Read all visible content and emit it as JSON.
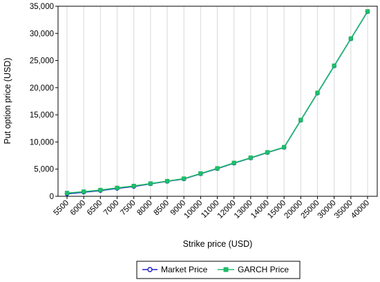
{
  "chart_data": {
    "type": "line",
    "title": "",
    "xlabel": "Strike price (USD)",
    "ylabel": "Put option price (USD)",
    "categories": [
      "5500",
      "6000",
      "6500",
      "7000",
      "7500",
      "8000",
      "8500",
      "9000",
      "10000",
      "11000",
      "12000",
      "13000",
      "14000",
      "15000",
      "20000",
      "25000",
      "30000",
      "35000",
      "40000"
    ],
    "ylim": [
      0,
      35000
    ],
    "yticks": [
      "0",
      "5,000",
      "10,000",
      "15,000",
      "20,000",
      "25,000",
      "30,000",
      "35,000"
    ],
    "ytick_values": [
      0,
      5000,
      10000,
      15000,
      20000,
      25000,
      30000,
      35000
    ],
    "grid": "vertical",
    "legend": "bottom",
    "series": [
      {
        "name": "Market Price",
        "color": "#1f1fc8",
        "marker": "circle",
        "values": [
          450,
          750,
          1050,
          1450,
          1800,
          2300,
          2750,
          3200,
          4150,
          5100,
          6100,
          7050,
          8050,
          9000,
          14000,
          19000,
          24000,
          29000,
          34000
        ]
      },
      {
        "name": "GARCH Price",
        "color": "#1fbf6a",
        "marker": "square",
        "values": [
          600,
          850,
          1150,
          1550,
          1900,
          2350,
          2800,
          3250,
          4200,
          5150,
          6150,
          7100,
          8100,
          9050,
          14050,
          19050,
          24050,
          29050,
          34050
        ]
      }
    ]
  }
}
